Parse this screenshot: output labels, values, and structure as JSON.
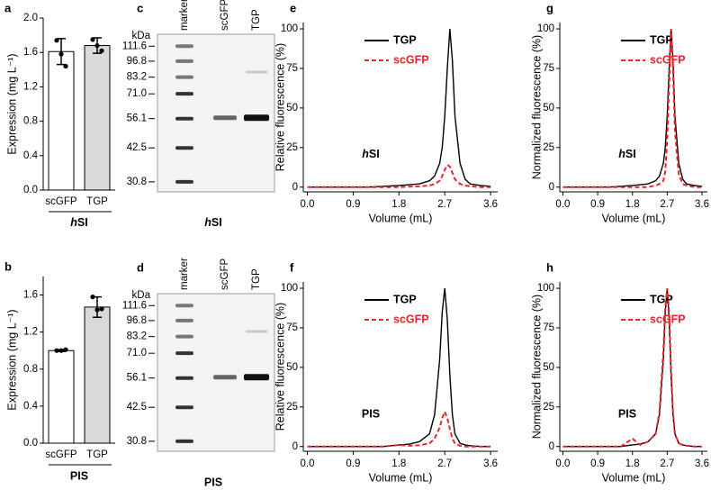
{
  "chart_data": [
    {
      "type": "bar",
      "panel": "a",
      "ylabel": "Expression (mg L⁻¹)",
      "categories": [
        "scGFP",
        "TGP"
      ],
      "values": [
        1.61,
        1.68
      ],
      "errors": [
        0.15,
        0.09
      ],
      "points": [
        [
          1.74,
          1.58,
          1.44
        ],
        [
          1.75,
          1.68,
          1.62
        ]
      ],
      "colors": [
        "#ffffff",
        "#d9d9d9"
      ],
      "group_label": "hSI",
      "ylim": [
        0,
        2.0
      ],
      "yticks": [
        {
          "value": 0,
          "label": "0.0"
        },
        0.4,
        0.8,
        1.2,
        1.6,
        {
          "value": 2.0,
          "label": "2.0"
        }
      ]
    },
    {
      "type": "bar",
      "panel": "b",
      "ylabel": "Expression (mg L⁻¹)",
      "categories": [
        "scGFP",
        "TGP"
      ],
      "values": [
        1.0,
        1.47
      ],
      "errors": [
        0.01,
        0.11
      ],
      "points": [
        [
          1.0,
          1.0,
          1.01
        ],
        [
          1.58,
          1.44,
          1.45
        ]
      ],
      "colors": [
        "#ffffff",
        "#d9d9d9"
      ],
      "group_label": "PIS",
      "ylim": [
        0,
        1.8
      ],
      "yticks": [
        {
          "value": 0,
          "label": "0.0"
        },
        0.4,
        0.8,
        1.2,
        1.6
      ]
    },
    {
      "type": "gel",
      "panel": "c",
      "unit": "kDa",
      "lanes": [
        "marker",
        "scGFP",
        "TGP"
      ],
      "label": "hSI",
      "log_scale": true,
      "ylim": [
        28,
        125
      ],
      "yticks": [
        111.6,
        96.8,
        83.2,
        {
          "value": 71,
          "label": "71.0"
        },
        56.1,
        42.5,
        30.8
      ]
    },
    {
      "type": "gel",
      "panel": "d",
      "unit": "kDa",
      "lanes": [
        "marker",
        "scGFP",
        "TGP"
      ],
      "label": "PIS",
      "log_scale": true,
      "ylim": [
        28,
        125
      ],
      "yticks": [
        111.6,
        96.8,
        83.2,
        {
          "value": 71,
          "label": "71.0"
        },
        56.1,
        42.5,
        30.8
      ]
    },
    {
      "type": "line",
      "panel": "e",
      "xlabel": "Volume (mL)",
      "ylabel": "Relative fluorescence (%)",
      "annotation": "hSI",
      "x": [
        0,
        0.3,
        0.6,
        0.9,
        1.2,
        1.5,
        1.8,
        2.0,
        2.2,
        2.4,
        2.5,
        2.6,
        2.65,
        2.7,
        2.75,
        2.8,
        2.85,
        2.9,
        3.0,
        3.1,
        3.2,
        3.4,
        3.6
      ],
      "series": [
        {
          "name": "TGP",
          "color": "#000000",
          "dash": "solid",
          "values": [
            0,
            0,
            0,
            0,
            0,
            0.5,
            1,
            1.5,
            2,
            4,
            7,
            15,
            25,
            45,
            75,
            100,
            80,
            45,
            15,
            5,
            2,
            1,
            0.5
          ]
        },
        {
          "name": "scGFP",
          "color": "#e8242a",
          "dash": "dashed",
          "values": [
            0,
            0,
            0,
            0,
            0,
            0,
            0,
            0.3,
            0.5,
            1,
            2,
            4,
            7,
            11,
            14,
            13,
            9,
            5,
            2,
            1,
            0.5,
            0,
            0
          ]
        }
      ],
      "xlim": [
        -0.08,
        3.74
      ],
      "ylim": [
        -3,
        104
      ],
      "xticks": [
        {
          "value": 0,
          "label": "0.0"
        },
        0.9,
        1.8,
        2.7,
        3.6
      ],
      "yticks": [
        0,
        25,
        50,
        75,
        100
      ]
    },
    {
      "type": "line",
      "panel": "f",
      "xlabel": "Volume (mL)",
      "ylabel": "Relative fluorescence (%)",
      "annotation": "PIS",
      "x": [
        0,
        0.3,
        0.6,
        0.9,
        1.2,
        1.5,
        1.8,
        2.0,
        2.2,
        2.4,
        2.5,
        2.6,
        2.65,
        2.7,
        2.75,
        2.8,
        2.85,
        2.9,
        3.0,
        3.1,
        3.2,
        3.4,
        3.6
      ],
      "series": [
        {
          "name": "TGP",
          "color": "#000000",
          "dash": "solid",
          "values": [
            0,
            0,
            0,
            0,
            0,
            0,
            1,
            1.5,
            3,
            8,
            20,
            55,
            85,
            100,
            80,
            45,
            20,
            8,
            2,
            1,
            0.5,
            0,
            0
          ]
        },
        {
          "name": "scGFP",
          "color": "#e8242a",
          "dash": "dashed",
          "values": [
            0,
            0,
            0,
            0,
            0,
            0,
            1,
            0.5,
            0.8,
            2,
            5,
            12,
            18,
            22,
            18,
            11,
            5,
            2,
            0.5,
            0,
            0,
            0,
            0
          ]
        }
      ],
      "xlim": [
        -0.08,
        3.74
      ],
      "ylim": [
        -3,
        104
      ],
      "xticks": [
        {
          "value": 0,
          "label": "0.0"
        },
        0.9,
        1.8,
        2.7,
        3.6
      ],
      "yticks": [
        0,
        25,
        50,
        75,
        100
      ]
    },
    {
      "type": "line",
      "panel": "g",
      "xlabel": "Volume (mL)",
      "ylabel": "Normalized fluorescence (%)",
      "annotation": "hSI",
      "x": [
        0,
        0.3,
        0.6,
        0.9,
        1.2,
        1.5,
        1.8,
        2.0,
        2.2,
        2.4,
        2.5,
        2.6,
        2.65,
        2.7,
        2.75,
        2.8,
        2.85,
        2.9,
        3.0,
        3.1,
        3.2,
        3.4,
        3.6
      ],
      "series": [
        {
          "name": "TGP",
          "color": "#000000",
          "dash": "solid",
          "values": [
            0,
            0,
            0,
            0,
            0,
            0.5,
            1,
            1.5,
            2,
            4,
            7,
            15,
            25,
            45,
            75,
            100,
            80,
            45,
            15,
            5,
            2,
            1,
            0.5
          ]
        },
        {
          "name": "scGFP",
          "color": "#e8242a",
          "dash": "dashed",
          "values": [
            0,
            0,
            0,
            0,
            0,
            0,
            0,
            0,
            0,
            1,
            2,
            4,
            10,
            30,
            65,
            100,
            75,
            35,
            8,
            2,
            1,
            0,
            0
          ]
        }
      ],
      "xlim": [
        -0.08,
        3.74
      ],
      "ylim": [
        -3,
        104
      ],
      "xticks": [
        {
          "value": 0,
          "label": "0.0"
        },
        0.9,
        1.8,
        2.7,
        3.6
      ],
      "yticks": [
        0,
        25,
        50,
        75,
        100
      ]
    },
    {
      "type": "line",
      "panel": "h",
      "xlabel": "Volume (mL)",
      "ylabel": "Normalized fluorescence (%)",
      "annotation": "PIS",
      "x": [
        0,
        0.3,
        0.6,
        0.9,
        1.2,
        1.5,
        1.8,
        2.0,
        2.2,
        2.4,
        2.5,
        2.6,
        2.65,
        2.7,
        2.75,
        2.8,
        2.85,
        2.9,
        3.0,
        3.1,
        3.2,
        3.4,
        3.6
      ],
      "series": [
        {
          "name": "TGP",
          "color": "#000000",
          "dash": "solid",
          "values": [
            0,
            0,
            0,
            0,
            0,
            0,
            1,
            1.5,
            3,
            8,
            20,
            55,
            85,
            100,
            80,
            45,
            20,
            8,
            2,
            1,
            0.5,
            0,
            0
          ]
        },
        {
          "name": "scGFP",
          "color": "#e8242a",
          "dash": "dashed",
          "values": [
            0,
            0,
            0,
            0,
            0,
            0,
            5,
            1,
            3,
            8,
            22,
            60,
            88,
            100,
            85,
            48,
            22,
            8,
            2,
            1,
            0.5,
            0,
            0
          ]
        }
      ],
      "xlim": [
        -0.08,
        3.74
      ],
      "ylim": [
        -3,
        104
      ],
      "xticks": [
        {
          "value": 0,
          "label": "0.0"
        },
        0.9,
        1.8,
        2.7,
        3.6
      ],
      "yticks": [
        0,
        25,
        50,
        75,
        100
      ]
    }
  ]
}
